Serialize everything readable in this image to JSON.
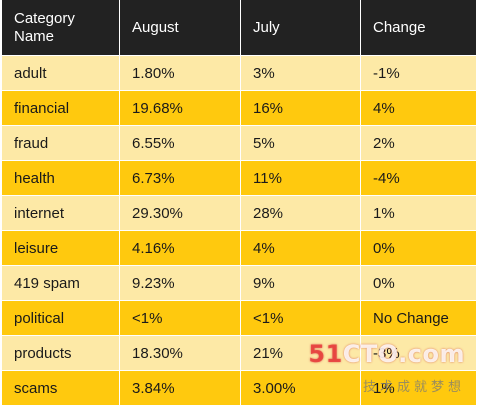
{
  "table": {
    "headers": [
      "Category\nName",
      "August",
      "July",
      "Change"
    ],
    "rows": [
      [
        "adult",
        "1.80%",
        "3%",
        "-1%"
      ],
      [
        "financial",
        "19.68%",
        "16%",
        "4%"
      ],
      [
        "fraud",
        "6.55%",
        "5%",
        "2%"
      ],
      [
        "health",
        "6.73%",
        "11%",
        "-4%"
      ],
      [
        "internet",
        "29.30%",
        "28%",
        "1%"
      ],
      [
        "leisure",
        "4.16%",
        "4%",
        "0%"
      ],
      [
        "419 spam",
        "9.23%",
        "9%",
        "0%"
      ],
      [
        "political",
        "<1%",
        "<1%",
        "No Change"
      ],
      [
        "products",
        "18.30%",
        "21%",
        "-3%"
      ],
      [
        "scams",
        "3.84%",
        "3.00%",
        "1%"
      ]
    ]
  },
  "watermark": {
    "main_prefix": "51",
    "main_suffix": "CTO.com",
    "sub": "技术成就梦想"
  },
  "colors": {
    "header_bg": "#222222",
    "row_light": "#fde9a6",
    "row_dark": "#ffc90e"
  }
}
